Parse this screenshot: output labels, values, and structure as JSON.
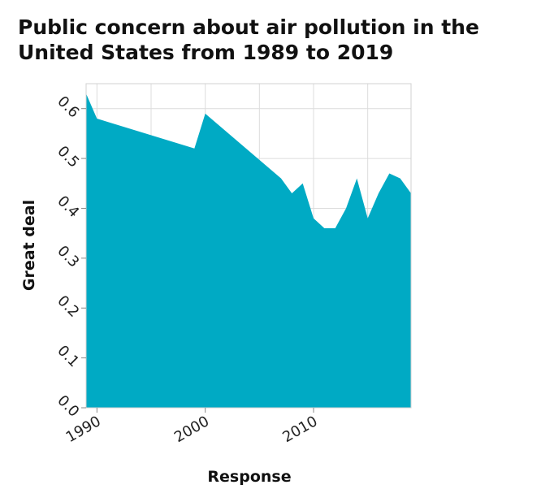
{
  "chart_data": {
    "type": "area",
    "title": "Public concern about air pollution in the United States from 1989 to 2019",
    "xlabel": "Response",
    "ylabel": "Great deal",
    "xlim": [
      1989,
      2019
    ],
    "ylim": [
      0,
      0.65
    ],
    "x_ticks": [
      1990,
      2000,
      2010
    ],
    "y_ticks": [
      "0.0",
      "0.1",
      "0.2",
      "0.3",
      "0.4",
      "0.5",
      "0.6"
    ],
    "grid": true,
    "fill_color": "#00aac4",
    "series": [
      {
        "x": [
          1989,
          1990,
          1999,
          2000,
          2007,
          2008,
          2009,
          2010,
          2011,
          2012,
          2013,
          2014,
          2015,
          2016,
          2017,
          2018,
          2019
        ],
        "values": [
          0.63,
          0.58,
          0.52,
          0.59,
          0.46,
          0.43,
          0.45,
          0.38,
          0.36,
          0.36,
          0.4,
          0.46,
          0.38,
          0.43,
          0.47,
          0.46,
          0.43
        ]
      }
    ]
  }
}
